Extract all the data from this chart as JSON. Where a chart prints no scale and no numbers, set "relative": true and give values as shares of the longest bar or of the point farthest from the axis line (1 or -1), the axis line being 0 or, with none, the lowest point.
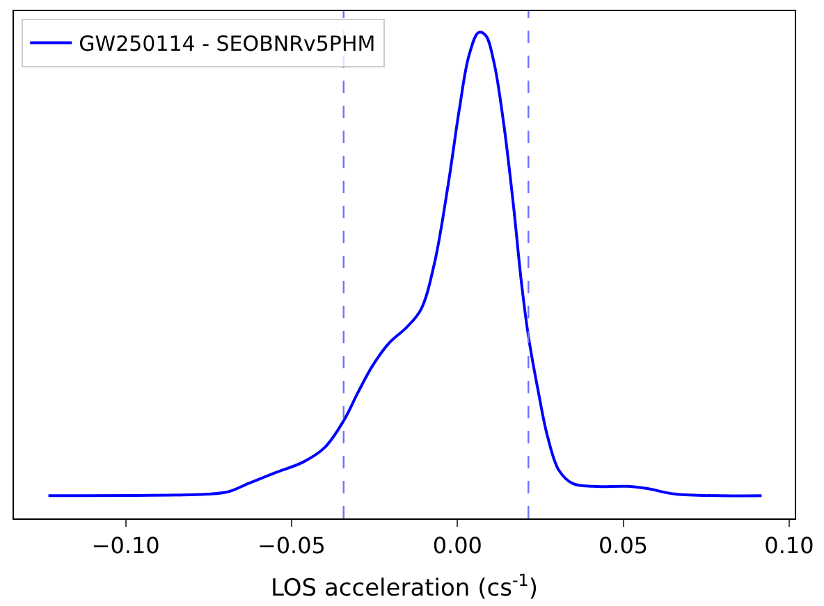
{
  "chart_data": {
    "type": "line",
    "relative": true,
    "xlabel": "LOS acceleration (cs$^{-1}$)",
    "xlim": [
      -0.1337,
      0.1017
    ],
    "xticks": [
      {
        "value": -0.1,
        "label": "−0.10"
      },
      {
        "value": -0.05,
        "label": "−0.05"
      },
      {
        "value": 0.0,
        "label": "0.00"
      },
      {
        "value": 0.05,
        "label": "0.05"
      },
      {
        "value": 0.1,
        "label": "0.10"
      }
    ],
    "series": [
      {
        "name": "GW250114 - SEOBNRv5PHM",
        "color": "#0000ff",
        "x": [
          -0.1233,
          -0.0755,
          -0.069,
          -0.063,
          -0.055,
          -0.0465,
          -0.04,
          -0.0343,
          -0.03,
          -0.0256,
          -0.0206,
          -0.0152,
          -0.011,
          -0.0069,
          -0.0027,
          0.0006,
          0.0035,
          0.0064,
          0.0085,
          0.011,
          0.0139,
          0.0168,
          0.0193,
          0.0214,
          0.0243,
          0.0272,
          0.0306,
          0.0347,
          0.041,
          0.0514,
          0.0576,
          0.0659,
          0.0917
        ],
        "values": [
          0.047,
          0.05,
          0.055,
          0.072,
          0.094,
          0.116,
          0.146,
          0.201,
          0.259,
          0.314,
          0.361,
          0.394,
          0.43,
          0.526,
          0.691,
          0.843,
          0.953,
          1.0,
          0.994,
          0.939,
          0.815,
          0.65,
          0.485,
          0.375,
          0.264,
          0.168,
          0.099,
          0.072,
          0.066,
          0.066,
          0.061,
          0.05,
          0.047
        ]
      }
    ],
    "ref_lines": [
      {
        "axis": "x",
        "value": -0.0343,
        "color": "#7070ff",
        "line_style": "dashed"
      },
      {
        "axis": "x",
        "value": 0.0214,
        "color": "#7070ff",
        "line_style": "dashed"
      }
    ],
    "legend": "top left",
    "marker": "none",
    "line_style": "solid"
  }
}
